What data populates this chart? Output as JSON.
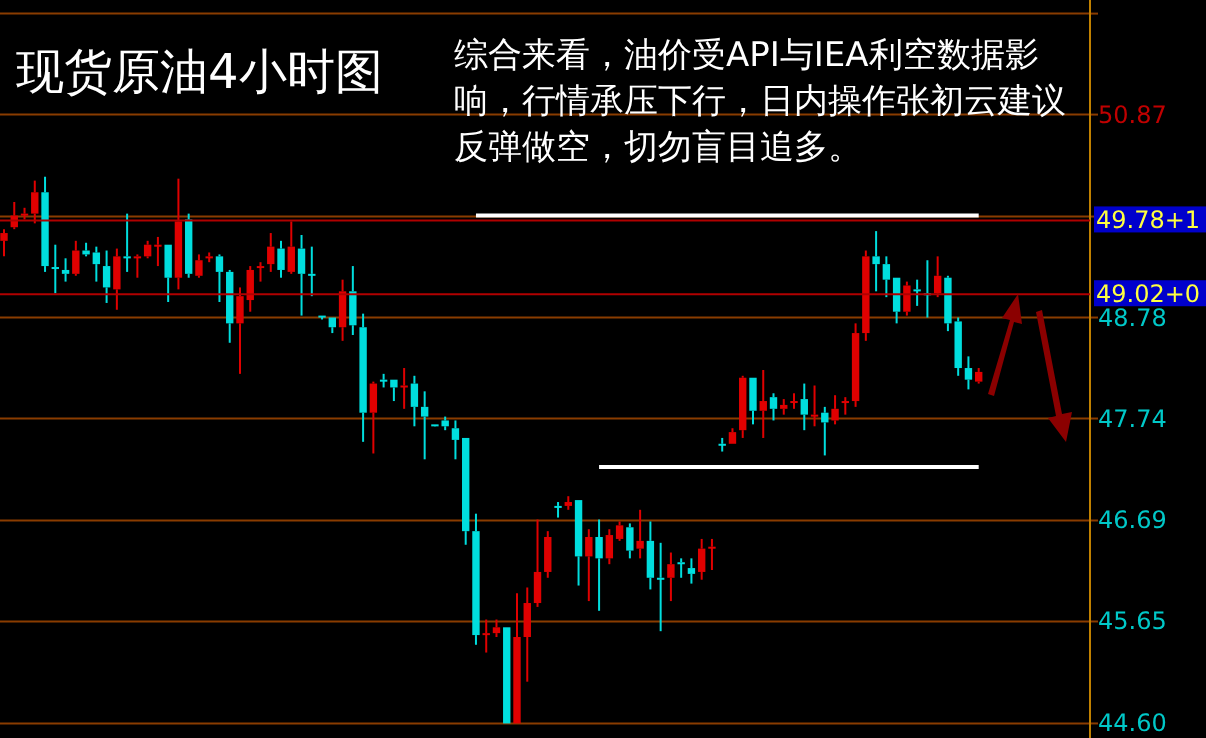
{
  "chart_data": {
    "type": "candlestick",
    "title": "现货原油4小时图",
    "annotations": [
      "综合来看，油价受API与IEA利空数据影响，行情承压下行，日内操作张初云建议反弹做空，切勿盲目追多。"
    ],
    "categories": [
      null,
      null,
      null,
      null,
      null,
      null,
      null,
      null,
      null,
      null,
      null,
      null,
      null,
      null,
      null,
      null,
      null,
      null,
      null,
      null,
      null,
      null,
      null,
      null,
      null,
      null,
      null,
      null,
      null,
      null,
      null,
      null,
      null,
      null,
      null,
      null,
      null,
      null,
      null,
      null,
      null,
      null,
      null,
      null,
      null,
      null,
      null,
      null,
      null,
      null,
      null,
      null,
      null,
      null,
      null,
      null,
      null,
      null,
      null,
      null,
      null,
      null,
      null,
      null,
      null,
      null,
      null,
      null,
      null,
      null,
      null,
      null,
      null,
      null,
      null,
      null,
      null,
      null,
      null,
      null,
      null,
      null,
      null,
      null,
      null,
      null,
      null,
      null,
      null,
      null,
      null,
      null,
      null,
      null,
      null,
      null
    ],
    "ylim": [
      44.45,
      52.05
    ],
    "yticks": [
      {
        "value": 51.91,
        "label": null
      },
      50.87,
      {
        "value": 49.82,
        "label": null
      },
      48.78,
      47.74,
      46.69,
      45.65,
      {
        "value": 44.6,
        "label": "44.60"
      }
    ],
    "grid": "y",
    "tick_labels": "y",
    "ohlc": [
      [
        49.57,
        49.69,
        49.41,
        49.65
      ],
      [
        49.71,
        49.97,
        49.69,
        49.83
      ],
      [
        49.84,
        49.91,
        49.79,
        49.85
      ],
      [
        49.85,
        50.19,
        49.75,
        50.07
      ],
      [
        50.07,
        50.23,
        49.25,
        49.31
      ],
      [
        49.3,
        49.53,
        49.03,
        49.29
      ],
      [
        49.27,
        49.39,
        49.15,
        49.23
      ],
      [
        49.23,
        49.57,
        49.21,
        49.47
      ],
      [
        49.47,
        49.55,
        49.41,
        49.43
      ],
      [
        49.45,
        49.51,
        49.15,
        49.33
      ],
      [
        49.31,
        49.47,
        48.93,
        49.09
      ],
      [
        49.07,
        49.49,
        48.86,
        49.41
      ],
      [
        49.41,
        49.85,
        49.25,
        49.4
      ],
      [
        49.4,
        49.43,
        49.19,
        49.41
      ],
      [
        49.41,
        49.57,
        49.39,
        49.53
      ],
      [
        49.52,
        49.61,
        49.31,
        49.53
      ],
      [
        49.53,
        49.53,
        48.94,
        49.19
      ],
      [
        49.19,
        50.21,
        49.07,
        49.77
      ],
      [
        49.79,
        49.85,
        49.19,
        49.23
      ],
      [
        49.21,
        49.43,
        49.19,
        49.37
      ],
      [
        49.4,
        49.45,
        49.35,
        49.41
      ],
      [
        49.41,
        49.43,
        48.94,
        49.25
      ],
      [
        49.25,
        49.27,
        48.52,
        48.72
      ],
      [
        48.72,
        49.09,
        48.2,
        49.0
      ],
      [
        48.96,
        49.31,
        48.84,
        49.27
      ],
      [
        49.3,
        49.35,
        49.15,
        49.31
      ],
      [
        49.33,
        49.65,
        49.25,
        49.51
      ],
      [
        49.49,
        49.57,
        49.19,
        49.27
      ],
      [
        49.25,
        49.77,
        49.23,
        49.51
      ],
      [
        49.49,
        49.63,
        48.8,
        49.23
      ],
      [
        49.23,
        49.51,
        49.0,
        49.22
      ],
      [
        48.8,
        48.8,
        48.76,
        48.79
      ],
      [
        48.78,
        48.78,
        48.62,
        48.68
      ],
      [
        48.68,
        49.17,
        48.54,
        49.05
      ],
      [
        49.05,
        49.31,
        48.6,
        48.7
      ],
      [
        48.68,
        48.82,
        47.5,
        47.8
      ],
      [
        47.8,
        48.12,
        47.38,
        48.1
      ],
      [
        48.14,
        48.2,
        48.06,
        48.13
      ],
      [
        48.14,
        48.14,
        47.92,
        48.06
      ],
      [
        48.07,
        48.26,
        47.84,
        48.08
      ],
      [
        48.1,
        48.18,
        47.66,
        47.86
      ],
      [
        47.86,
        48.02,
        47.32,
        47.76
      ],
      [
        47.68,
        47.68,
        47.66,
        47.67
      ],
      [
        47.72,
        47.76,
        47.62,
        47.66
      ],
      [
        47.64,
        47.72,
        47.32,
        47.52
      ],
      [
        47.54,
        47.54,
        46.44,
        46.58
      ],
      [
        46.58,
        46.76,
        45.41,
        45.51
      ],
      [
        45.52,
        45.67,
        45.33,
        45.53
      ],
      [
        45.53,
        45.67,
        45.49,
        45.59
      ],
      [
        45.59,
        45.59,
        44.6,
        44.6
      ],
      [
        44.6,
        45.94,
        44.6,
        45.49
      ],
      [
        45.49,
        46.0,
        45.03,
        45.84
      ],
      [
        45.84,
        46.7,
        45.8,
        46.16
      ],
      [
        46.16,
        46.58,
        46.1,
        46.52
      ],
      [
        46.84,
        46.88,
        46.72,
        46.83
      ],
      [
        46.84,
        46.94,
        46.8,
        46.88
      ],
      [
        46.9,
        46.9,
        46.02,
        46.32
      ],
      [
        46.32,
        46.6,
        45.86,
        46.52
      ],
      [
        46.52,
        46.7,
        45.76,
        46.3
      ],
      [
        46.3,
        46.6,
        46.24,
        46.54
      ],
      [
        46.5,
        46.68,
        46.48,
        46.64
      ],
      [
        46.62,
        46.66,
        46.3,
        46.38
      ],
      [
        46.4,
        46.8,
        46.3,
        46.48
      ],
      [
        46.48,
        46.68,
        45.98,
        46.1
      ],
      [
        46.1,
        46.46,
        45.55,
        46.09
      ],
      [
        46.1,
        46.36,
        45.86,
        46.24
      ],
      [
        46.26,
        46.3,
        46.1,
        46.25
      ],
      [
        46.2,
        46.3,
        46.04,
        46.14
      ],
      [
        46.16,
        46.5,
        46.08,
        46.4
      ],
      [
        46.41,
        46.5,
        46.18,
        46.42
      ],
      [
        47.48,
        47.54,
        47.4,
        47.47
      ],
      [
        47.48,
        47.64,
        47.48,
        47.6
      ],
      [
        47.62,
        48.18,
        47.54,
        48.16
      ],
      [
        48.16,
        48.16,
        47.68,
        47.82
      ],
      [
        47.82,
        48.24,
        47.54,
        47.92
      ],
      [
        47.96,
        48.0,
        47.72,
        47.84
      ],
      [
        47.84,
        47.94,
        47.78,
        47.88
      ],
      [
        47.91,
        48.0,
        47.84,
        47.92
      ],
      [
        47.94,
        48.1,
        47.62,
        47.78
      ],
      [
        47.77,
        48.08,
        47.66,
        47.78
      ],
      [
        47.8,
        47.86,
        47.36,
        47.7
      ],
      [
        47.72,
        47.98,
        47.68,
        47.84
      ],
      [
        47.91,
        47.96,
        47.78,
        47.92
      ],
      [
        47.92,
        48.72,
        47.86,
        48.62
      ],
      [
        48.62,
        49.47,
        48.54,
        49.41
      ],
      [
        49.41,
        49.67,
        49.05,
        49.33
      ],
      [
        49.33,
        49.41,
        48.99,
        49.17
      ],
      [
        49.19,
        49.19,
        48.72,
        48.84
      ],
      [
        48.84,
        49.15,
        48.8,
        49.11
      ],
      [
        49.07,
        49.17,
        48.9,
        49.06
      ],
      [
        49.03,
        49.37,
        48.78,
        49.02
      ],
      [
        49.03,
        49.41,
        48.99,
        49.21
      ],
      [
        49.19,
        49.21,
        48.64,
        48.72
      ],
      [
        48.74,
        48.78,
        48.18,
        48.26
      ],
      [
        48.26,
        48.38,
        48.04,
        48.14
      ],
      [
        48.12,
        48.26,
        48.1,
        48.22
      ]
    ],
    "series": [
      {
        "type": "line",
        "color": "#ffffff",
        "values": [
          null,
          null,
          null,
          null,
          null,
          null,
          null,
          null,
          null,
          null,
          null,
          null,
          null,
          null,
          null,
          null,
          null,
          null,
          null,
          null,
          null,
          null,
          null,
          null,
          null,
          null,
          null,
          null,
          null,
          null,
          null,
          null,
          null,
          null,
          null,
          null,
          null,
          null,
          null,
          null,
          null,
          null,
          null,
          null,
          null,
          null,
          49.83,
          49.83,
          49.83,
          49.83,
          49.83,
          49.83,
          49.83,
          49.83,
          49.83,
          49.83,
          49.83,
          49.83,
          49.83,
          49.83,
          49.83,
          49.83,
          49.83,
          49.83,
          49.83,
          49.83,
          49.83,
          49.83,
          49.83,
          49.83,
          49.83,
          49.83,
          49.83,
          49.83,
          49.83,
          49.83,
          49.83,
          49.83,
          49.83,
          49.83,
          49.83,
          49.83,
          49.83,
          49.83,
          49.83,
          49.83,
          49.83,
          49.83,
          49.83,
          49.83,
          49.83,
          49.83,
          49.83,
          49.83,
          49.83,
          49.83
        ]
      },
      {
        "type": "line",
        "color": "#ffffff",
        "values": [
          null,
          null,
          null,
          null,
          null,
          null,
          null,
          null,
          null,
          null,
          null,
          null,
          null,
          null,
          null,
          null,
          null,
          null,
          null,
          null,
          null,
          null,
          null,
          null,
          null,
          null,
          null,
          null,
          null,
          null,
          null,
          null,
          null,
          null,
          null,
          null,
          null,
          null,
          null,
          null,
          null,
          null,
          null,
          null,
          null,
          null,
          null,
          null,
          null,
          null,
          null,
          null,
          null,
          null,
          null,
          null,
          null,
          null,
          47.24,
          47.24,
          47.24,
          47.24,
          47.24,
          47.24,
          47.24,
          47.24,
          47.24,
          47.24,
          47.24,
          47.24,
          47.24,
          47.24,
          47.24,
          47.24,
          47.24,
          47.24,
          47.24,
          47.24,
          47.24,
          47.24,
          47.24,
          47.24,
          47.24,
          47.24,
          47.24,
          47.24,
          47.24,
          47.24,
          47.24,
          47.24,
          47.24,
          47.24,
          47.24,
          47.24,
          47.24,
          47.24
        ]
      }
    ],
    "ref_lines": [
      {
        "axis": "y",
        "value": 49.78,
        "label": "49.78+1",
        "color": "#b00000"
      },
      {
        "axis": "y",
        "value": 49.02,
        "label": "49.02+0",
        "color": "#b00000"
      }
    ]
  }
}
